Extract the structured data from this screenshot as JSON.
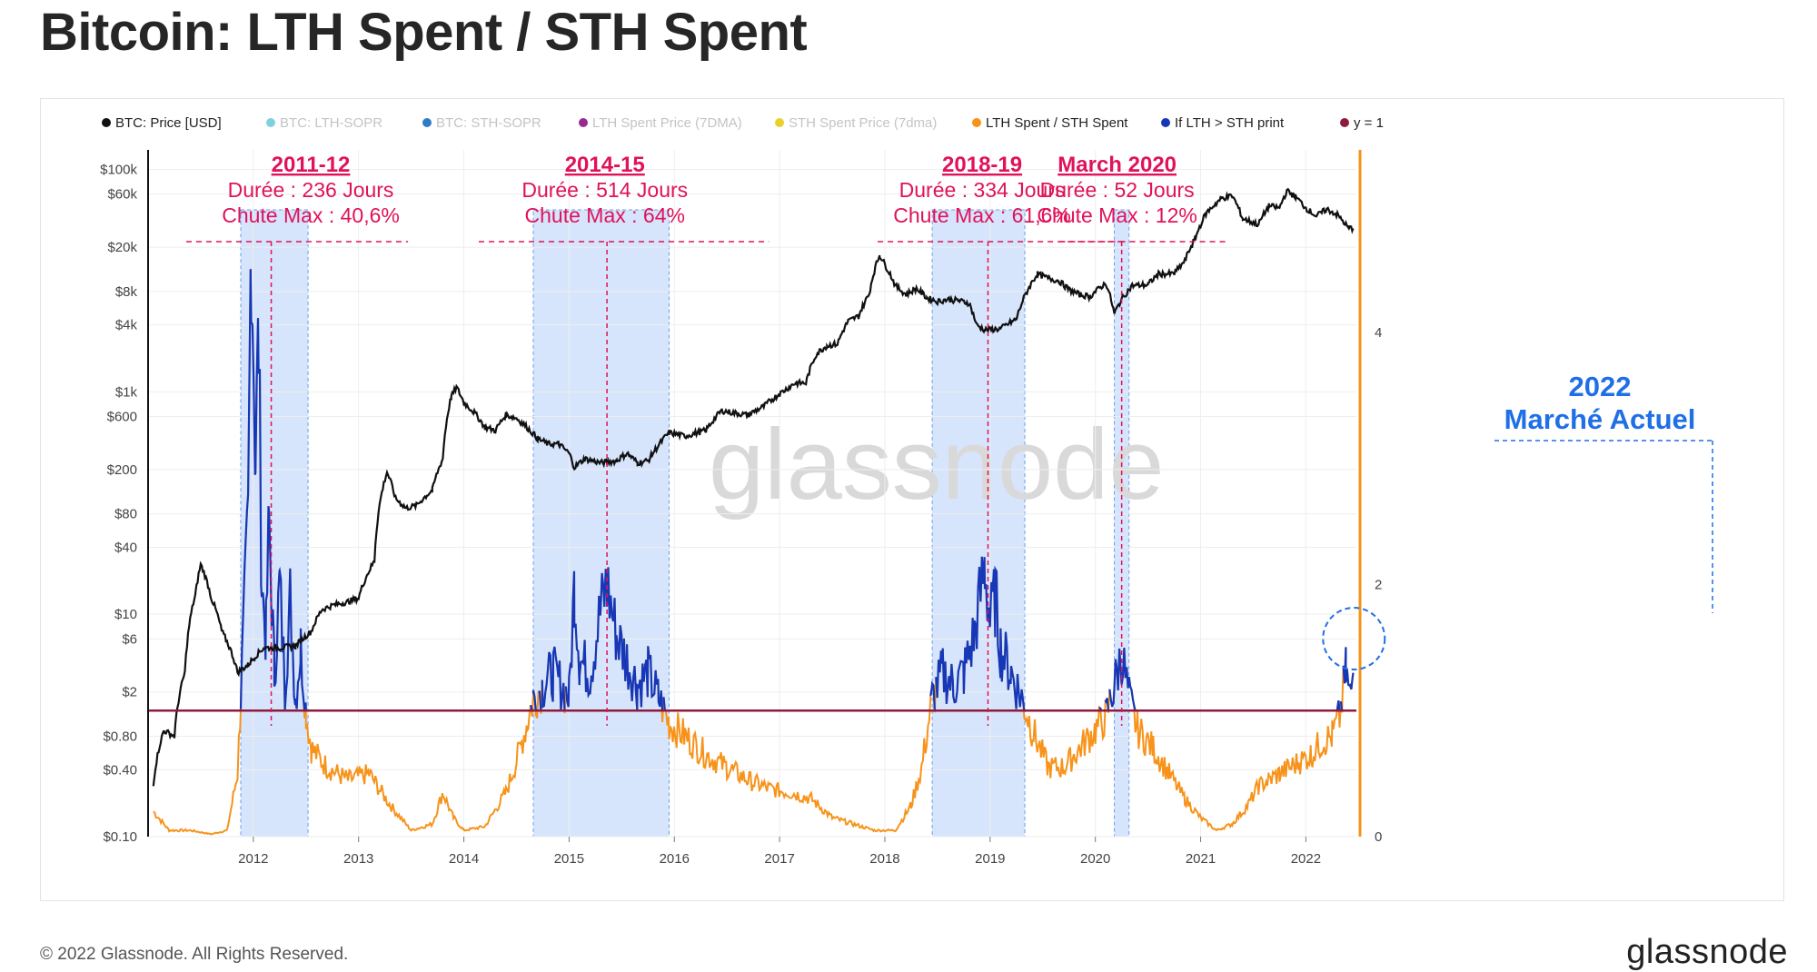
{
  "title": "Bitcoin: LTH Spent / STH Spent",
  "footer": "© 2022 Glassnode. All Rights Reserved.",
  "brand": "glassnode",
  "watermark": "glassnode",
  "colors": {
    "price": "#111111",
    "lth_sopr": "#7fd0e0",
    "sth_sopr": "#2f7bc4",
    "lth_spent_price": "#9a2a8f",
    "sth_spent_price": "#e8d22a",
    "ratio": "#f7931a",
    "lth_gt_sth": "#1537b8",
    "y1": "#8e1b3c",
    "annotation": "#e0125a",
    "current": "#1f6fe6",
    "shade": "#cfe0fb"
  },
  "legend": [
    {
      "label": "BTC: Price [USD]",
      "color": "#111111",
      "active": true
    },
    {
      "label": "BTC: LTH-SOPR",
      "color": "#7fd0e0",
      "active": false
    },
    {
      "label": "BTC: STH-SOPR",
      "color": "#2f7bc4",
      "active": false
    },
    {
      "label": "LTH Spent Price (7DMA)",
      "color": "#9a2a8f",
      "active": false
    },
    {
      "label": "STH Spent Price (7dma)",
      "color": "#e8d22a",
      "active": false
    },
    {
      "label": "LTH Spent / STH Spent",
      "color": "#f7931a",
      "active": true
    },
    {
      "label": "If LTH > STH print",
      "color": "#1537b8",
      "active": true
    },
    {
      "label": "y = 1",
      "color": "#8e1b3c",
      "active": true
    }
  ],
  "annotations": [
    {
      "title": "2011-12",
      "duration": "Durée : 236 Jours",
      "drawdown": "Chute Max : 40,6%",
      "start": 2011.88,
      "end": 2012.52,
      "peak": 2012.17
    },
    {
      "title": "2014-15",
      "duration": "Durée : 514 Jours",
      "drawdown": "Chute Max : 64%",
      "start": 2014.66,
      "end": 2015.95,
      "peak": 2015.36
    },
    {
      "title": "2018-19",
      "duration": "Durée : 334 Jours",
      "drawdown": "Chute Max : 61,6%",
      "start": 2018.45,
      "end": 2019.33,
      "peak": 2018.98
    },
    {
      "title": "March 2020",
      "duration": "Durée : 52 Jours",
      "drawdown": "Chute Max : 12%",
      "start": 2020.18,
      "end": 2020.32,
      "peak": 2020.25
    }
  ],
  "current_market": {
    "line1": "2022",
    "line2": "Marché Actuel",
    "date": 2022.37
  },
  "chart_data": {
    "type": "line",
    "title": "Bitcoin: LTH Spent / STH Spent",
    "x_range": [
      2011.0,
      2022.48
    ],
    "x_ticks": [
      "2012",
      "2013",
      "2014",
      "2015",
      "2016",
      "2017",
      "2018",
      "2019",
      "2020",
      "2021",
      "2022"
    ],
    "y_left_scale": "log",
    "y_left_range": [
      0.1,
      150000
    ],
    "y_left_ticks": [
      "$100k",
      "$60k",
      "$20k",
      "$8k",
      "$4k",
      "$1k",
      "$600",
      "$200",
      "$80",
      "$40",
      "$10",
      "$6",
      "$2",
      "$0.80",
      "$0.40",
      "$0.10"
    ],
    "y_left_tick_values": [
      100000,
      60000,
      20000,
      8000,
      4000,
      1000,
      600,
      200,
      80,
      40,
      10,
      6,
      2,
      0.8,
      0.4,
      0.1
    ],
    "y_right_range": [
      0,
      5.45
    ],
    "y_right_ticks": [
      "4",
      "2",
      "0"
    ],
    "y_right_tick_values": [
      4,
      2,
      0
    ],
    "reference_line_y": 1,
    "series": [
      {
        "name": "BTC: Price [USD]",
        "axis": "left",
        "points": [
          [
            2011.05,
            0.3
          ],
          [
            2011.15,
            0.9
          ],
          [
            2011.25,
            0.8
          ],
          [
            2011.35,
            3
          ],
          [
            2011.45,
            15
          ],
          [
            2011.5,
            28
          ],
          [
            2011.6,
            14
          ],
          [
            2011.7,
            7
          ],
          [
            2011.85,
            3
          ],
          [
            2011.95,
            3.5
          ],
          [
            2012.1,
            5
          ],
          [
            2012.25,
            5
          ],
          [
            2012.4,
            5.2
          ],
          [
            2012.55,
            7
          ],
          [
            2012.65,
            11
          ],
          [
            2012.75,
            12
          ],
          [
            2012.9,
            13
          ],
          [
            2013.0,
            14
          ],
          [
            2013.15,
            30
          ],
          [
            2013.27,
            190
          ],
          [
            2013.35,
            110
          ],
          [
            2013.45,
            90
          ],
          [
            2013.55,
            95
          ],
          [
            2013.7,
            130
          ],
          [
            2013.8,
            250
          ],
          [
            2013.88,
            900
          ],
          [
            2013.93,
            1100
          ],
          [
            2014.0,
            800
          ],
          [
            2014.1,
            650
          ],
          [
            2014.2,
            480
          ],
          [
            2014.3,
            450
          ],
          [
            2014.4,
            620
          ],
          [
            2014.5,
            580
          ],
          [
            2014.6,
            480
          ],
          [
            2014.7,
            380
          ],
          [
            2014.8,
            340
          ],
          [
            2014.9,
            340
          ],
          [
            2015.0,
            280
          ],
          [
            2015.05,
            210
          ],
          [
            2015.15,
            250
          ],
          [
            2015.3,
            230
          ],
          [
            2015.45,
            240
          ],
          [
            2015.55,
            280
          ],
          [
            2015.65,
            230
          ],
          [
            2015.75,
            240
          ],
          [
            2015.85,
            330
          ],
          [
            2015.95,
            430
          ],
          [
            2016.1,
            400
          ],
          [
            2016.3,
            450
          ],
          [
            2016.45,
            680
          ],
          [
            2016.55,
            650
          ],
          [
            2016.7,
            620
          ],
          [
            2016.85,
            740
          ],
          [
            2017.0,
            960
          ],
          [
            2017.15,
            1200
          ],
          [
            2017.25,
            1200
          ],
          [
            2017.35,
            2200
          ],
          [
            2017.45,
            2600
          ],
          [
            2017.55,
            2700
          ],
          [
            2017.65,
            4300
          ],
          [
            2017.75,
            4800
          ],
          [
            2017.85,
            7500
          ],
          [
            2017.95,
            17000
          ],
          [
            2018.0,
            14000
          ],
          [
            2018.1,
            9000
          ],
          [
            2018.2,
            7500
          ],
          [
            2018.3,
            8500
          ],
          [
            2018.4,
            7000
          ],
          [
            2018.5,
            6500
          ],
          [
            2018.6,
            6800
          ],
          [
            2018.7,
            6600
          ],
          [
            2018.8,
            6300
          ],
          [
            2018.87,
            4000
          ],
          [
            2018.95,
            3600
          ],
          [
            2019.1,
            3700
          ],
          [
            2019.25,
            4500
          ],
          [
            2019.35,
            8000
          ],
          [
            2019.45,
            11500
          ],
          [
            2019.55,
            10500
          ],
          [
            2019.65,
            10000
          ],
          [
            2019.75,
            8300
          ],
          [
            2019.85,
            7500
          ],
          [
            2019.95,
            7200
          ],
          [
            2020.1,
            9500
          ],
          [
            2020.18,
            5000
          ],
          [
            2020.25,
            6800
          ],
          [
            2020.35,
            9000
          ],
          [
            2020.5,
            9200
          ],
          [
            2020.6,
            11500
          ],
          [
            2020.75,
            11500
          ],
          [
            2020.85,
            15000
          ],
          [
            2020.95,
            24000
          ],
          [
            2021.05,
            40000
          ],
          [
            2021.2,
            55000
          ],
          [
            2021.3,
            58000
          ],
          [
            2021.4,
            36000
          ],
          [
            2021.55,
            32000
          ],
          [
            2021.65,
            47000
          ],
          [
            2021.75,
            45000
          ],
          [
            2021.82,
            64000
          ],
          [
            2021.9,
            57000
          ],
          [
            2022.0,
            45000
          ],
          [
            2022.1,
            38000
          ],
          [
            2022.2,
            44000
          ],
          [
            2022.3,
            39000
          ],
          [
            2022.4,
            30000
          ],
          [
            2022.45,
            29500
          ]
        ]
      },
      {
        "name": "LTH Spent / STH Spent",
        "axis": "right",
        "points": [
          [
            2011.05,
            0.2
          ],
          [
            2011.2,
            0.05
          ],
          [
            2011.4,
            0.05
          ],
          [
            2011.6,
            0.02
          ],
          [
            2011.75,
            0.05
          ],
          [
            2011.85,
            0.5
          ],
          [
            2011.88,
            1.1
          ],
          [
            2011.95,
            2.5
          ],
          [
            2011.98,
            4.9
          ],
          [
            2012.02,
            3.0
          ],
          [
            2012.05,
            4.0
          ],
          [
            2012.08,
            2.0
          ],
          [
            2012.12,
            1.6
          ],
          [
            2012.15,
            2.5
          ],
          [
            2012.2,
            1.3
          ],
          [
            2012.25,
            2.0
          ],
          [
            2012.3,
            1.2
          ],
          [
            2012.35,
            1.9
          ],
          [
            2012.4,
            1.1
          ],
          [
            2012.45,
            1.5
          ],
          [
            2012.5,
            1.0
          ],
          [
            2012.55,
            0.7
          ],
          [
            2012.7,
            0.55
          ],
          [
            2012.9,
            0.45
          ],
          [
            2013.1,
            0.5
          ],
          [
            2013.3,
            0.25
          ],
          [
            2013.5,
            0.05
          ],
          [
            2013.7,
            0.1
          ],
          [
            2013.8,
            0.35
          ],
          [
            2013.9,
            0.15
          ],
          [
            2014.0,
            0.05
          ],
          [
            2014.2,
            0.08
          ],
          [
            2014.4,
            0.35
          ],
          [
            2014.5,
            0.6
          ],
          [
            2014.6,
            0.9
          ],
          [
            2014.66,
            1.1
          ],
          [
            2014.75,
            1.2
          ],
          [
            2014.85,
            1.3
          ],
          [
            2015.0,
            1.1
          ],
          [
            2015.05,
            2.0
          ],
          [
            2015.1,
            1.4
          ],
          [
            2015.2,
            1.3
          ],
          [
            2015.3,
            1.8
          ],
          [
            2015.36,
            2.0
          ],
          [
            2015.45,
            1.6
          ],
          [
            2015.55,
            1.4
          ],
          [
            2015.65,
            1.2
          ],
          [
            2015.75,
            1.3
          ],
          [
            2015.85,
            1.1
          ],
          [
            2015.95,
            0.9
          ],
          [
            2016.1,
            0.8
          ],
          [
            2016.3,
            0.65
          ],
          [
            2016.5,
            0.55
          ],
          [
            2016.7,
            0.45
          ],
          [
            2016.9,
            0.38
          ],
          [
            2017.1,
            0.35
          ],
          [
            2017.3,
            0.3
          ],
          [
            2017.5,
            0.15
          ],
          [
            2017.7,
            0.1
          ],
          [
            2017.9,
            0.05
          ],
          [
            2018.1,
            0.05
          ],
          [
            2018.25,
            0.25
          ],
          [
            2018.35,
            0.55
          ],
          [
            2018.45,
            1.1
          ],
          [
            2018.55,
            1.3
          ],
          [
            2018.65,
            1.2
          ],
          [
            2018.75,
            1.3
          ],
          [
            2018.85,
            1.6
          ],
          [
            2018.95,
            2.15
          ],
          [
            2019.0,
            1.7
          ],
          [
            2019.05,
            1.9
          ],
          [
            2019.1,
            1.5
          ],
          [
            2019.2,
            1.3
          ],
          [
            2019.3,
            1.1
          ],
          [
            2019.4,
            0.85
          ],
          [
            2019.55,
            0.55
          ],
          [
            2019.7,
            0.55
          ],
          [
            2019.85,
            0.7
          ],
          [
            2020.0,
            0.85
          ],
          [
            2020.1,
            0.95
          ],
          [
            2020.18,
            1.2
          ],
          [
            2020.25,
            1.45
          ],
          [
            2020.32,
            1.1
          ],
          [
            2020.4,
            0.85
          ],
          [
            2020.55,
            0.7
          ],
          [
            2020.7,
            0.5
          ],
          [
            2020.85,
            0.3
          ],
          [
            2021.0,
            0.15
          ],
          [
            2021.15,
            0.05
          ],
          [
            2021.3,
            0.1
          ],
          [
            2021.45,
            0.25
          ],
          [
            2021.55,
            0.4
          ],
          [
            2021.65,
            0.45
          ],
          [
            2021.75,
            0.5
          ],
          [
            2021.85,
            0.55
          ],
          [
            2021.95,
            0.6
          ],
          [
            2022.05,
            0.65
          ],
          [
            2022.15,
            0.75
          ],
          [
            2022.25,
            0.8
          ],
          [
            2022.32,
            0.95
          ],
          [
            2022.38,
            1.3
          ],
          [
            2022.42,
            1.1
          ],
          [
            2022.45,
            1.3
          ]
        ]
      },
      {
        "name": "If LTH > STH print",
        "axis": "right",
        "rule": "ratio plotted where > 1"
      },
      {
        "name": "y = 1",
        "axis": "right",
        "values": [
          1
        ]
      }
    ]
  }
}
